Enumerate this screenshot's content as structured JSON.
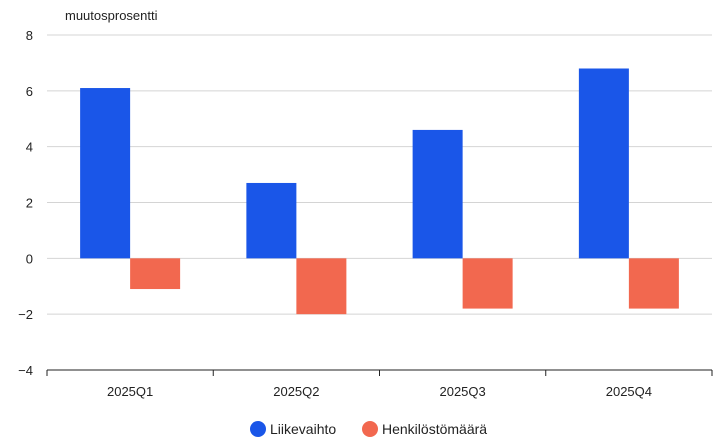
{
  "chart_data": {
    "type": "bar",
    "ylabel": "muutosprosentti",
    "categories": [
      "2025Q1",
      "2025Q2",
      "2025Q3",
      "2025Q4"
    ],
    "series": [
      {
        "name": "Liikevaihto",
        "values": [
          6.1,
          2.7,
          4.6,
          6.8
        ],
        "color": "#1a56e8"
      },
      {
        "name": "Henkilöstömäärä",
        "values": [
          -1.1,
          -2.0,
          -1.8,
          -1.8
        ],
        "color": "#f2684f"
      }
    ],
    "ylim": [
      -4,
      8
    ],
    "yticks": [
      -4,
      -2,
      0,
      2,
      4,
      6,
      8
    ],
    "ytick_labels": [
      "−4",
      "−2",
      "0",
      "2",
      "4",
      "6",
      "8"
    ],
    "grid": true,
    "legend": "bottom-center"
  }
}
